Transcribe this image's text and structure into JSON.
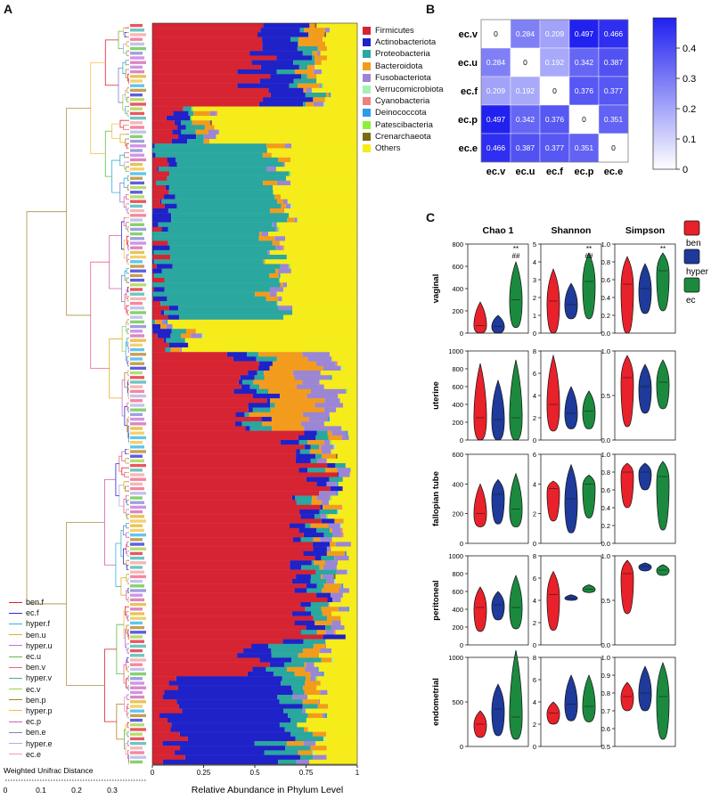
{
  "panel_labels": {
    "a": "A",
    "b": "B",
    "c": "C"
  },
  "panelA": {
    "x_axis_label": "Relative Abundance in Phylum Level",
    "x_ticks": [
      "0",
      "0.25",
      "0.5",
      "0.75",
      "1"
    ],
    "scale_label": "Weighted Unifrac Distance",
    "scale_ticks": [
      "0",
      "0.1",
      "0.2",
      "0.3"
    ],
    "phyla": [
      {
        "name": "Firmicutes",
        "color": "#d62433"
      },
      {
        "name": "Actinobacteriota",
        "color": "#1f22c8"
      },
      {
        "name": "Proteobacteria",
        "color": "#2aa79f"
      },
      {
        "name": "Bacteroidota",
        "color": "#f29b1d"
      },
      {
        "name": "Fusobacteriota",
        "color": "#9b86d4"
      },
      {
        "name": "Verrucomicrobiota",
        "color": "#a6f0b8"
      },
      {
        "name": "Cyanobacteria",
        "color": "#f08080"
      },
      {
        "name": "Deinococcota",
        "color": "#2c9be8"
      },
      {
        "name": "Patescibacteria",
        "color": "#8ef03c"
      },
      {
        "name": "Crenarchaeota",
        "color": "#7a6a14"
      },
      {
        "name": "Others",
        "color": "#f5ec1a"
      }
    ],
    "groups": [
      {
        "name": "ben.f",
        "color": "#e0202a"
      },
      {
        "name": "ec.f",
        "color": "#2a2ad0"
      },
      {
        "name": "hyper.f",
        "color": "#30b0e8"
      },
      {
        "name": "ben.u",
        "color": "#e0b020"
      },
      {
        "name": "hyper.u",
        "color": "#c070e0"
      },
      {
        "name": "ec.u",
        "color": "#60c040"
      },
      {
        "name": "ben.v",
        "color": "#f06080"
      },
      {
        "name": "hyper.v",
        "color": "#40b0b0"
      },
      {
        "name": "ec.v",
        "color": "#a0d040"
      },
      {
        "name": "ben.p",
        "color": "#b08020"
      },
      {
        "name": "hyper.p",
        "color": "#f0c040"
      },
      {
        "name": "ec.p",
        "color": "#d060b0"
      },
      {
        "name": "ben.e",
        "color": "#8080d0"
      },
      {
        "name": "hyper.e",
        "color": "#b0b0e0"
      },
      {
        "name": "ec.e",
        "color": "#f0a0a0"
      }
    ]
  },
  "panelB": {
    "chart_data": {
      "type": "heatmap",
      "rows": [
        "ec.v",
        "ec.u",
        "ec.f",
        "ec.p",
        "ec.e"
      ],
      "columns": [
        "ec.v",
        "ec.u",
        "ec.f",
        "ec.p",
        "ec.e"
      ],
      "values": [
        [
          0,
          0.284,
          0.209,
          0.497,
          0.466
        ],
        [
          0.284,
          0,
          0.192,
          0.342,
          0.387
        ],
        [
          0.209,
          0.192,
          0,
          0.376,
          0.377
        ],
        [
          0.497,
          0.342,
          0.376,
          0,
          0.351
        ],
        [
          0.466,
          0.387,
          0.377,
          0.351,
          0
        ]
      ],
      "value_labels": [
        [
          "0",
          "0.284",
          "0.209",
          "0.497",
          "0.466"
        ],
        [
          "0.284",
          "0",
          "0.192",
          "0.342",
          "0.387"
        ],
        [
          "0.209",
          "0.192",
          "0",
          "0.376",
          "0.377"
        ],
        [
          "0.497",
          "0.342",
          "0.376",
          "0",
          "0.351"
        ],
        [
          "0.466",
          "0.387",
          "0.377",
          "0.351",
          "0"
        ]
      ],
      "colorbar_ticks": [
        "0.4",
        "0.3",
        "0.2",
        "0.1",
        "0"
      ],
      "colorbar_range": [
        0,
        0.5
      ],
      "low_color": "#ffffff",
      "high_color": "#2020f0"
    }
  },
  "panelC": {
    "columns": [
      "Chao 1",
      "Shannon",
      "Simpson"
    ],
    "legend": [
      {
        "name": "ben",
        "color": "#e8212b"
      },
      {
        "name": "hyper",
        "color": "#1e3a9a"
      },
      {
        "name": "ec",
        "color": "#1b8a3e"
      }
    ],
    "rows": [
      {
        "name": "vaginal",
        "axes": [
          {
            "ticks": [
              "800",
              "600",
              "400",
              "200",
              "0"
            ],
            "range": [
              0,
              800
            ]
          },
          {
            "ticks": [
              "5",
              "4",
              "3",
              "2",
              "1",
              "0"
            ],
            "range": [
              0,
              5
            ]
          },
          {
            "ticks": [
              "1.0",
              "0.8",
              "0.6",
              "0.4",
              "0.2",
              "0.0"
            ],
            "range": [
              0,
              1
            ]
          }
        ]
      },
      {
        "name": "uterine",
        "axes": [
          {
            "ticks": [
              "1000",
              "800",
              "600",
              "400",
              "200",
              "0"
            ],
            "range": [
              0,
              1000
            ]
          },
          {
            "ticks": [
              "8",
              "6",
              "4",
              "2",
              "0"
            ],
            "range": [
              0,
              8
            ]
          },
          {
            "ticks": [
              "1.0",
              "0.5",
              "0.0"
            ],
            "range": [
              0,
              1
            ]
          }
        ]
      },
      {
        "name": "fallopian tube",
        "axes": [
          {
            "ticks": [
              "600",
              "400",
              "200",
              "0"
            ],
            "range": [
              0,
              600
            ]
          },
          {
            "ticks": [
              "6",
              "4",
              "2",
              "0"
            ],
            "range": [
              0,
              6
            ]
          },
          {
            "ticks": [
              "1.0",
              "0.8",
              "0.6",
              "0.4",
              "0.2",
              "0.0"
            ],
            "range": [
              0,
              1
            ]
          }
        ]
      },
      {
        "name": "peritoneal",
        "axes": [
          {
            "ticks": [
              "1000",
              "800",
              "600",
              "400",
              "200",
              "0"
            ],
            "range": [
              0,
              1000
            ]
          },
          {
            "ticks": [
              "8",
              "6",
              "4",
              "2",
              "0"
            ],
            "range": [
              0,
              8
            ]
          },
          {
            "ticks": [
              "1.0",
              "0.5",
              "0.0"
            ],
            "range": [
              0,
              1
            ]
          }
        ]
      },
      {
        "name": "endometrial",
        "axes": [
          {
            "ticks": [
              "1000",
              "500",
              "0"
            ],
            "range": [
              0,
              1000
            ]
          },
          {
            "ticks": [
              "8",
              "6",
              "4",
              "2",
              "0"
            ],
            "range": [
              0,
              8
            ]
          },
          {
            "ticks": [
              "1.0",
              "0.9",
              "0.8",
              "0.7",
              "0.6",
              "0.5"
            ],
            "range": [
              0.5,
              1
            ]
          }
        ]
      }
    ],
    "violins": [
      [
        [
          {
            "min": 0,
            "max": 280,
            "median": 70
          },
          {
            "min": 0,
            "max": 160,
            "median": 60
          },
          {
            "min": 50,
            "max": 640,
            "median": 300
          }
        ],
        [
          {
            "min": 0,
            "max": 3.6,
            "median": 1.8
          },
          {
            "min": 0.8,
            "max": 2.8,
            "median": 1.6
          },
          {
            "min": 0.8,
            "max": 4.5,
            "median": 2.9
          }
        ],
        [
          {
            "min": 0,
            "max": 0.86,
            "median": 0.55
          },
          {
            "min": 0.22,
            "max": 0.78,
            "median": 0.5
          },
          {
            "min": 0.25,
            "max": 0.9,
            "median": 0.7
          }
        ]
      ],
      [
        [
          {
            "min": 0,
            "max": 860,
            "median": 250
          },
          {
            "min": 0,
            "max": 670,
            "median": 230
          },
          {
            "min": 0,
            "max": 900,
            "median": 250
          }
        ],
        [
          {
            "min": 0.8,
            "max": 7.6,
            "median": 3.2
          },
          {
            "min": 1,
            "max": 4.8,
            "median": 2.4
          },
          {
            "min": 1,
            "max": 4.4,
            "median": 2.6
          }
        ],
        [
          {
            "min": 0.15,
            "max": 0.95,
            "median": 0.7
          },
          {
            "min": 0.3,
            "max": 0.85,
            "median": 0.6
          },
          {
            "min": 0.35,
            "max": 0.9,
            "median": 0.65
          }
        ]
      ],
      [
        [
          {
            "min": 110,
            "max": 400,
            "median": 200
          },
          {
            "min": 130,
            "max": 430,
            "median": 330
          },
          {
            "min": 110,
            "max": 470,
            "median": 230
          }
        ],
        [
          {
            "min": 1.5,
            "max": 4.2,
            "median": 3.7
          },
          {
            "min": 0.7,
            "max": 5.3,
            "median": 3.0
          },
          {
            "min": 1.7,
            "max": 4.6,
            "median": 4.0
          }
        ],
        [
          {
            "min": 0.4,
            "max": 0.9,
            "median": 0.8
          },
          {
            "min": 0.6,
            "max": 0.9,
            "median": 0.8
          },
          {
            "min": 0.15,
            "max": 0.92,
            "median": 0.75
          }
        ]
      ],
      [
        [
          {
            "min": 150,
            "max": 650,
            "median": 420
          },
          {
            "min": 280,
            "max": 600,
            "median": 450
          },
          {
            "min": 180,
            "max": 780,
            "median": 420
          }
        ],
        [
          {
            "min": 1.3,
            "max": 6.6,
            "median": 4.5
          },
          {
            "min": 4.0,
            "max": 4.5,
            "median": 4.2
          },
          {
            "min": 4.7,
            "max": 5.4,
            "median": 5.0
          }
        ],
        [
          {
            "min": 0.35,
            "max": 0.95,
            "median": 0.8
          },
          {
            "min": 0.83,
            "max": 0.92,
            "median": 0.88
          },
          {
            "min": 0.78,
            "max": 0.9,
            "median": 0.84
          }
        ]
      ],
      [
        [
          {
            "min": 100,
            "max": 400,
            "median": 250
          },
          {
            "min": 120,
            "max": 700,
            "median": 420
          },
          {
            "min": 80,
            "max": 1080,
            "median": 330
          }
        ],
        [
          {
            "min": 2,
            "max": 4,
            "median": 3
          },
          {
            "min": 2.3,
            "max": 6.4,
            "median": 3.8
          },
          {
            "min": 2.2,
            "max": 6.4,
            "median": 3.6
          }
        ],
        [
          {
            "min": 0.7,
            "max": 0.86,
            "median": 0.78
          },
          {
            "min": 0.7,
            "max": 0.95,
            "median": 0.8
          },
          {
            "min": 0.54,
            "max": 0.97,
            "median": 0.78
          }
        ]
      ]
    ],
    "annotations": {
      "chao_vaginal": [
        "**",
        "##"
      ],
      "shannon_vaginal": [
        "**",
        "##"
      ],
      "simpson_vaginal": [
        "**"
      ]
    }
  }
}
